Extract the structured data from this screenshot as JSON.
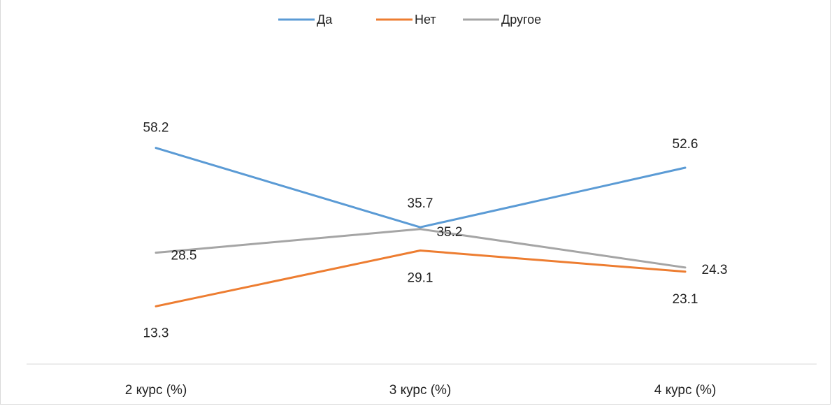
{
  "chart_data": {
    "type": "line",
    "categories": [
      "2 курс (%)",
      "3 курс (%)",
      "4 курс (%)"
    ],
    "series": [
      {
        "name": "Да",
        "values": [
          58.2,
          35.7,
          52.6
        ],
        "color": "#5b9bd5"
      },
      {
        "name": "Нет",
        "values": [
          13.3,
          29.1,
          23.1
        ],
        "color": "#ed7d31"
      },
      {
        "name": "Другое",
        "values": [
          28.5,
          35.2,
          24.3
        ],
        "color": "#a5a5a5"
      }
    ],
    "title": "",
    "xlabel": "",
    "ylabel": "",
    "ylim": [
      0,
      70
    ],
    "grid": false,
    "legend": "top-center",
    "data_labels": true
  }
}
